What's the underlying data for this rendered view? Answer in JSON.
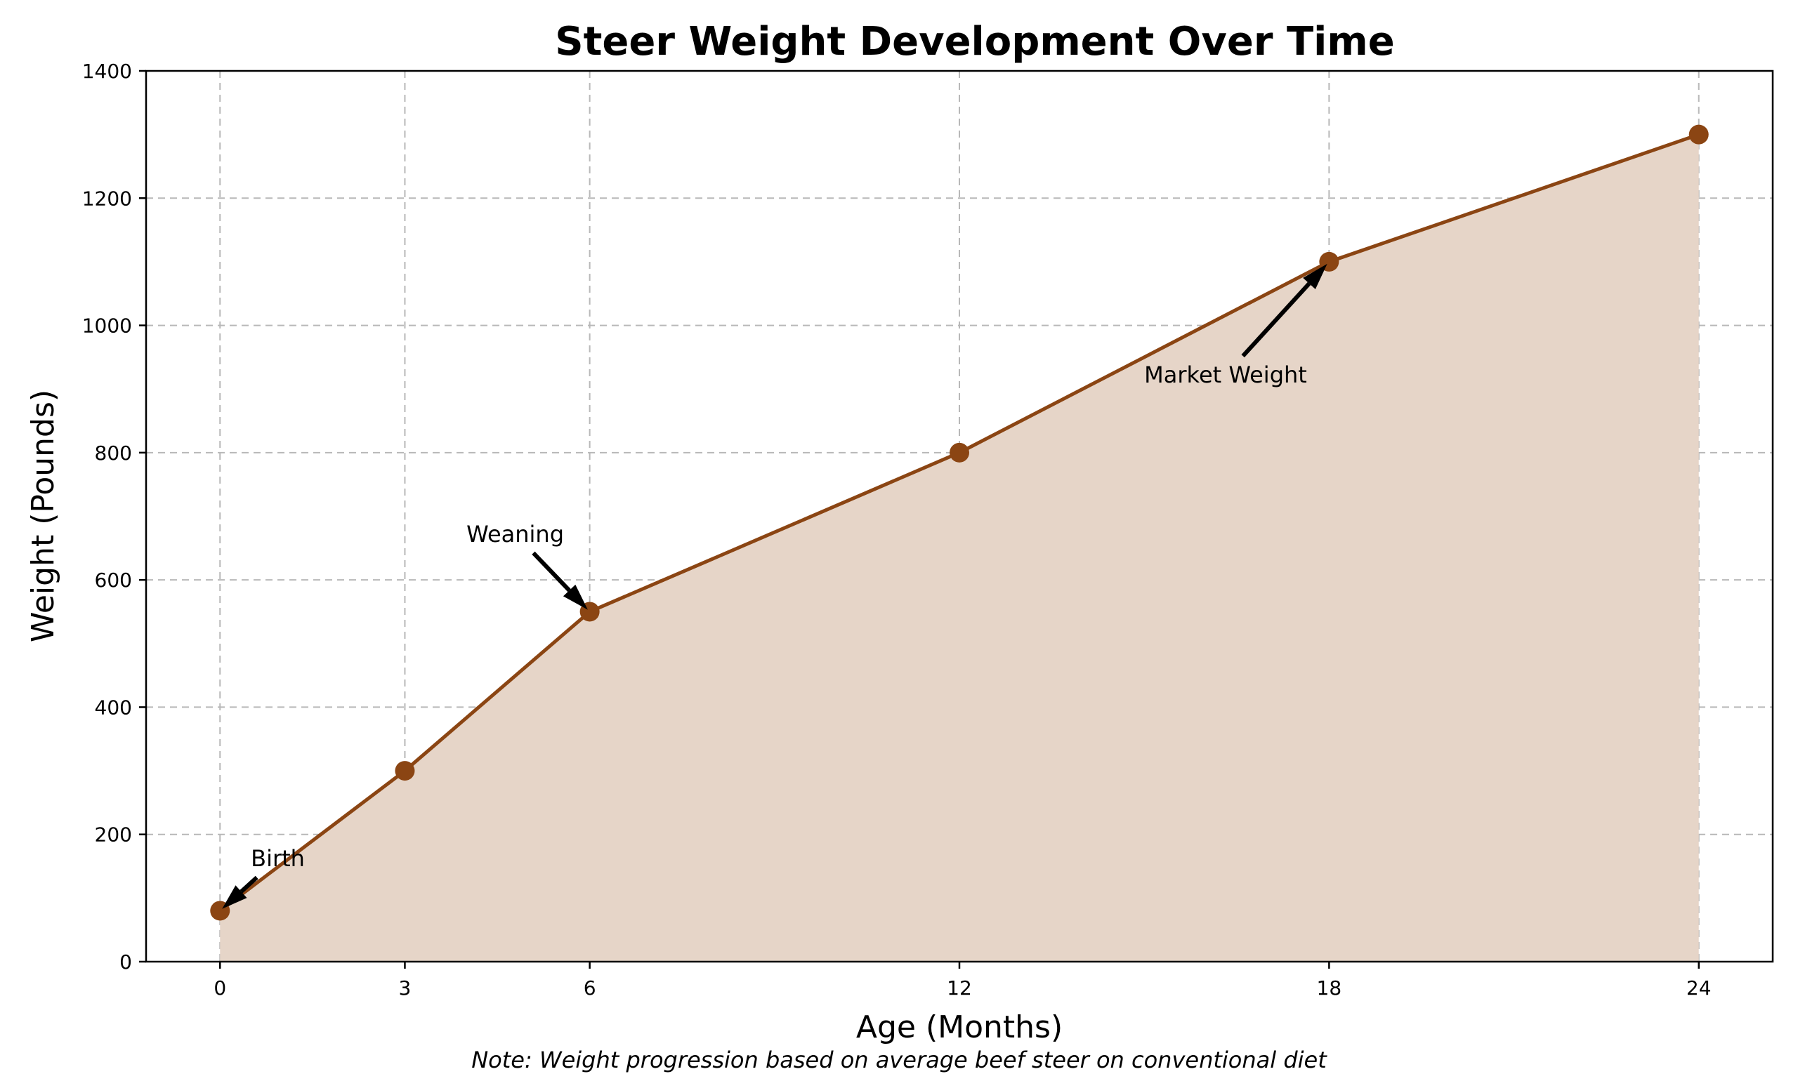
{
  "chart_data": {
    "type": "line",
    "title": "Steer Weight Development Over Time",
    "xlabel": "Age (Months)",
    "ylabel": "Weight (Pounds)",
    "note": "Note: Weight progression based on average beef steer on conventional diet",
    "x": [
      0,
      3,
      6,
      12,
      18,
      24
    ],
    "xticks": [
      "0",
      "3",
      "6",
      "12",
      "18",
      "24"
    ],
    "yticks": [
      "0",
      "200",
      "400",
      "600",
      "800",
      "1000",
      "1200",
      "1400"
    ],
    "xlim": [
      -1.2,
      25.2
    ],
    "ylim": [
      0,
      1400
    ],
    "grid": true,
    "filled_area": true,
    "series": [
      {
        "values": [
          80,
          300,
          550,
          800,
          1100,
          1300
        ]
      }
    ],
    "annotations": [
      {
        "label": "Birth",
        "x": 0,
        "y": 80,
        "text_x": 0.5,
        "text_y": 150
      },
      {
        "label": "Weaning",
        "x": 6,
        "y": 550,
        "text_x": 4.0,
        "text_y": 660
      },
      {
        "label": "Market Weight",
        "x": 18,
        "y": 1100,
        "text_x": 15.0,
        "text_y": 910
      }
    ],
    "colors": {
      "line": "#8B4513",
      "marker": "#8B4513",
      "fill": "#E6D5C8",
      "arrow": "#000000",
      "axis": "#000000",
      "grid": "#b8b8b8"
    }
  }
}
